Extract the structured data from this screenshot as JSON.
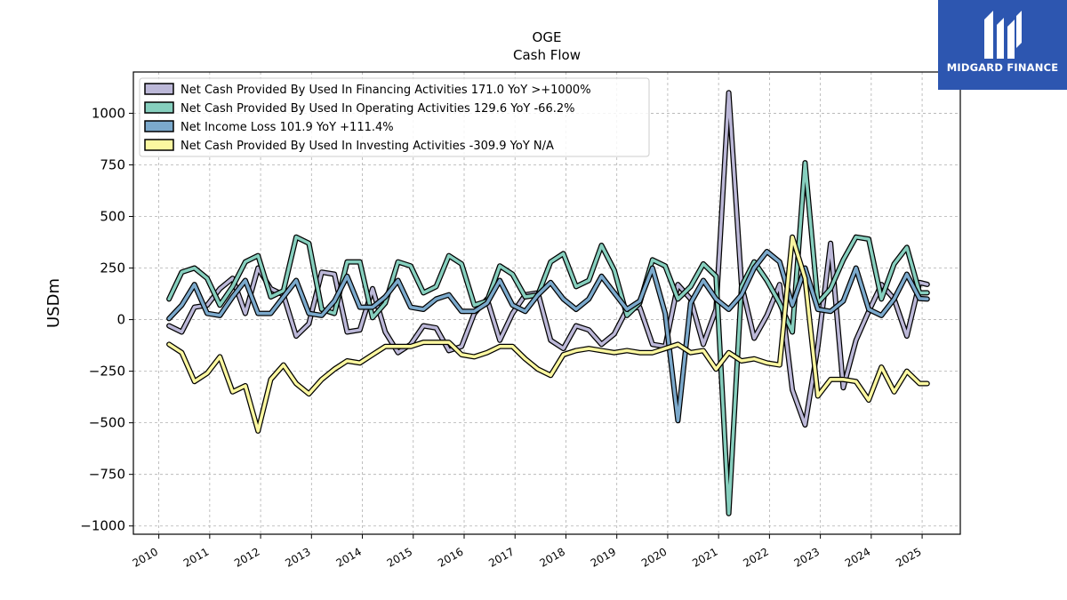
{
  "chart_data": {
    "type": "line",
    "title": "OGE",
    "subtitle": "Cash Flow",
    "ylabel": "USDm",
    "xlabel": "",
    "xlim": [
      2009.5,
      2025.75
    ],
    "ylim": [
      -1040,
      1200
    ],
    "yticks": [
      -1000,
      -750,
      -500,
      -250,
      0,
      250,
      500,
      750,
      1000
    ],
    "ytick_labels": [
      "−1000",
      "−750",
      "−500",
      "−250",
      "0",
      "250",
      "500",
      "750",
      "1000"
    ],
    "xticks": [
      2010,
      2011,
      2012,
      2013,
      2014,
      2015,
      2016,
      2017,
      2018,
      2019,
      2020,
      2021,
      2022,
      2023,
      2024,
      2025
    ],
    "xtick_labels": [
      "2010",
      "2011",
      "2012",
      "2013",
      "2014",
      "2015",
      "2016",
      "2017",
      "2018",
      "2019",
      "2020",
      "2021",
      "2022",
      "2023",
      "2024",
      "2025"
    ],
    "grid": true,
    "legend_position": "top-left",
    "x": [
      2010.2,
      2010.45,
      2010.7,
      2010.95,
      2011.2,
      2011.45,
      2011.7,
      2011.95,
      2012.2,
      2012.45,
      2012.7,
      2012.95,
      2013.2,
      2013.45,
      2013.7,
      2013.95,
      2014.2,
      2014.45,
      2014.7,
      2014.95,
      2015.2,
      2015.45,
      2015.7,
      2015.95,
      2016.2,
      2016.45,
      2016.7,
      2016.95,
      2017.2,
      2017.45,
      2017.7,
      2017.95,
      2018.2,
      2018.45,
      2018.7,
      2018.95,
      2019.2,
      2019.45,
      2019.7,
      2019.95,
      2020.2,
      2020.45,
      2020.7,
      2020.95,
      2021.2,
      2021.45,
      2021.7,
      2021.95,
      2022.2,
      2022.45,
      2022.7,
      2022.95,
      2023.2,
      2023.45,
      2023.7,
      2023.95,
      2024.2,
      2024.45,
      2024.7,
      2024.95,
      2025.1
    ],
    "series": [
      {
        "name": "Net Cash Provided By Used In Financing Activities  171.0 YoY >+1000%",
        "color": "#bcb8d8",
        "values": [
          -30,
          -60,
          60,
          70,
          150,
          200,
          30,
          250,
          150,
          120,
          -80,
          -20,
          230,
          220,
          -60,
          -50,
          150,
          -60,
          -160,
          -120,
          -30,
          -40,
          -150,
          -130,
          30,
          100,
          -100,
          30,
          120,
          130,
          -100,
          -140,
          -30,
          -50,
          -120,
          -70,
          50,
          60,
          -120,
          -130,
          170,
          100,
          -120,
          50,
          1100,
          170,
          -90,
          20,
          170,
          -340,
          -510,
          -130,
          370,
          -330,
          -100,
          40,
          170,
          100,
          -80,
          180,
          171
        ]
      },
      {
        "name": "Net Cash Provided By Used In Operating Activities  129.6 YoY -66.2%",
        "color": "#86cfbe",
        "values": [
          100,
          230,
          250,
          200,
          70,
          160,
          280,
          310,
          110,
          140,
          400,
          370,
          50,
          30,
          280,
          280,
          10,
          80,
          280,
          260,
          130,
          160,
          310,
          270,
          70,
          90,
          260,
          220,
          110,
          120,
          280,
          320,
          160,
          190,
          360,
          240,
          20,
          80,
          290,
          260,
          100,
          160,
          270,
          210,
          -940,
          160,
          280,
          190,
          80,
          -60,
          760,
          80,
          150,
          290,
          400,
          390,
          100,
          270,
          350,
          129.6,
          130
        ]
      },
      {
        "name": "Net Income Loss  101.9 YoY +111.4%",
        "color": "#7ba9cc",
        "values": [
          5,
          70,
          170,
          30,
          20,
          110,
          190,
          30,
          30,
          110,
          190,
          30,
          20,
          90,
          210,
          60,
          60,
          110,
          190,
          60,
          50,
          100,
          120,
          40,
          40,
          80,
          190,
          70,
          40,
          120,
          180,
          100,
          50,
          100,
          210,
          130,
          50,
          90,
          250,
          30,
          -490,
          80,
          190,
          100,
          50,
          120,
          250,
          330,
          280,
          70,
          250,
          50,
          40,
          90,
          250,
          50,
          20,
          100,
          220,
          101.9,
          100
        ]
      },
      {
        "name": "Net Cash Provided By Used In Investing Activities  -309.9 YoY N/A",
        "color": "#fbf7a0",
        "values": [
          -120,
          -160,
          -300,
          -260,
          -180,
          -350,
          -320,
          -540,
          -290,
          -220,
          -310,
          -360,
          -290,
          -240,
          -200,
          -210,
          -170,
          -130,
          -130,
          -130,
          -110,
          -110,
          -110,
          -170,
          -180,
          -160,
          -130,
          -130,
          -190,
          -240,
          -270,
          -170,
          -150,
          -140,
          -150,
          -160,
          -150,
          -160,
          -160,
          -140,
          -120,
          -160,
          -150,
          -240,
          -160,
          -200,
          -190,
          -210,
          -220,
          400,
          200,
          -370,
          -290,
          -290,
          -300,
          -390,
          -230,
          -350,
          -250,
          -309.9,
          -310
        ]
      }
    ]
  },
  "logo": {
    "text": "MIDGARD FINANCE"
  },
  "colors": {
    "logo_bg": "#2d56b0",
    "outline": "#000000"
  }
}
